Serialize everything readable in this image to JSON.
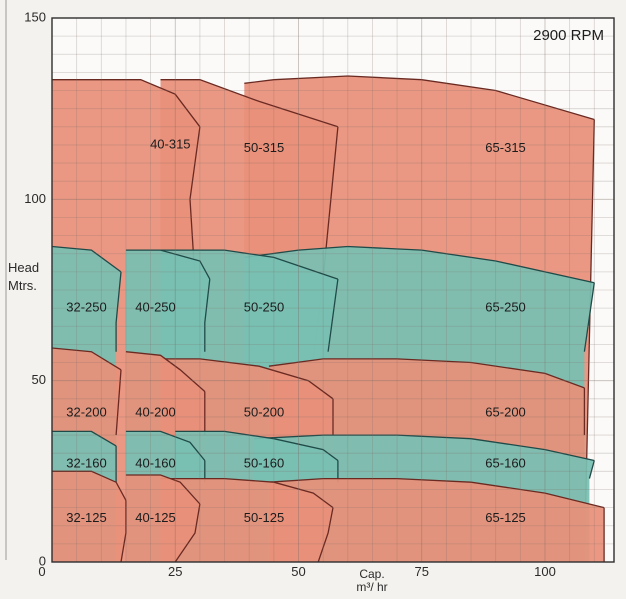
{
  "chart_data": {
    "type": "area",
    "title": "2900 RPM",
    "ylabel": "Head Mtrs.",
    "xlabel": "Cap. m³/ hr",
    "xlim": [
      0,
      114
    ],
    "ylim": [
      0,
      150
    ],
    "x_ticks": [
      0,
      25,
      50,
      75,
      100
    ],
    "x_tick_labels": [
      "0",
      "25",
      "50",
      "75",
      "100"
    ],
    "y_ticks": [
      0,
      50,
      100,
      150
    ],
    "y_tick_labels": [
      "0",
      "50",
      "100",
      "150"
    ],
    "grid": true,
    "colors": {
      "salmon": "#e8907a",
      "teal": "#79bfb3",
      "salmon_stroke": "#6a2a22",
      "teal_stroke": "#1f4a48"
    },
    "series": [
      {
        "name": "65-315",
        "label_at": [
          92,
          114
        ],
        "fill": "salmon",
        "left": [
          [
            39,
            0
          ],
          [
            39,
            132
          ]
        ],
        "top": [
          [
            39,
            132
          ],
          [
            45,
            133
          ],
          [
            60,
            134
          ],
          [
            75,
            133
          ],
          [
            90,
            130
          ],
          [
            110,
            122
          ]
        ],
        "right": [
          [
            110,
            122
          ],
          [
            108,
            0
          ]
        ]
      },
      {
        "name": "50-315",
        "label_at": [
          43,
          114
        ],
        "fill": "salmon",
        "left": [
          [
            22,
            0
          ],
          [
            22,
            133
          ]
        ],
        "top": [
          [
            22,
            133
          ],
          [
            30,
            133
          ],
          [
            42,
            127
          ],
          [
            58,
            120
          ]
        ],
        "right": [
          [
            58,
            120
          ],
          [
            55,
            78
          ],
          [
            48,
            0
          ]
        ]
      },
      {
        "name": "40-315",
        "label_at": [
          24,
          115
        ],
        "fill": "salmon",
        "left": [
          [
            0,
            0
          ],
          [
            0,
            133
          ]
        ],
        "top": [
          [
            0,
            133
          ],
          [
            8,
            133
          ],
          [
            18,
            133
          ],
          [
            25,
            129
          ],
          [
            30,
            120
          ]
        ],
        "right": [
          [
            30,
            120
          ],
          [
            28,
            100
          ],
          [
            29,
            78
          ]
        ]
      },
      {
        "name": "65-250",
        "label_at": [
          92,
          70
        ],
        "fill": "teal",
        "left": [
          [
            39,
            0
          ],
          [
            39,
            84
          ]
        ],
        "top": [
          [
            39,
            84
          ],
          [
            50,
            86
          ],
          [
            60,
            87
          ],
          [
            75,
            86
          ],
          [
            90,
            83
          ],
          [
            110,
            77
          ]
        ],
        "right": [
          [
            110,
            77
          ],
          [
            108,
            58
          ]
        ]
      },
      {
        "name": "50-250",
        "label_at": [
          43,
          70
        ],
        "fill": "teal",
        "left": [
          [
            22,
            0
          ],
          [
            22,
            86
          ]
        ],
        "top": [
          [
            22,
            86
          ],
          [
            35,
            86
          ],
          [
            45,
            84
          ],
          [
            58,
            78
          ]
        ],
        "right": [
          [
            58,
            78
          ],
          [
            56,
            58
          ]
        ]
      },
      {
        "name": "40-250",
        "label_at": [
          21,
          70
        ],
        "fill": "teal",
        "left": [
          [
            15,
            0
          ],
          [
            15,
            86
          ]
        ],
        "top": [
          [
            15,
            86
          ],
          [
            22,
            86
          ],
          [
            30,
            83
          ],
          [
            32,
            78
          ]
        ],
        "right": [
          [
            32,
            78
          ],
          [
            31,
            66
          ],
          [
            31,
            58
          ]
        ]
      },
      {
        "name": "32-250",
        "label_at": [
          7,
          70
        ],
        "fill": "teal",
        "left": [
          [
            0,
            0
          ],
          [
            0,
            87
          ]
        ],
        "top": [
          [
            0,
            87
          ],
          [
            8,
            86
          ],
          [
            14,
            80
          ]
        ],
        "right": [
          [
            14,
            80
          ],
          [
            13,
            66
          ],
          [
            13,
            58
          ]
        ]
      },
      {
        "name": "65-200",
        "label_at": [
          92,
          41
        ],
        "fill": "salmon",
        "left": [
          [
            44,
            0
          ],
          [
            44,
            54
          ]
        ],
        "top": [
          [
            44,
            54
          ],
          [
            55,
            56
          ],
          [
            70,
            56
          ],
          [
            85,
            55
          ],
          [
            100,
            52
          ],
          [
            108,
            48
          ]
        ],
        "right": [
          [
            108,
            48
          ],
          [
            108,
            35
          ]
        ]
      },
      {
        "name": "50-200",
        "label_at": [
          43,
          41
        ],
        "fill": "salmon",
        "left": [
          [
            22,
            0
          ],
          [
            22,
            56
          ]
        ],
        "top": [
          [
            22,
            56
          ],
          [
            30,
            56
          ],
          [
            42,
            54
          ],
          [
            52,
            50
          ],
          [
            57,
            45
          ]
        ],
        "right": [
          [
            57,
            45
          ],
          [
            57,
            35
          ]
        ]
      },
      {
        "name": "40-200",
        "label_at": [
          21,
          41
        ],
        "fill": "salmon",
        "left": [
          [
            15,
            0
          ],
          [
            15,
            58
          ]
        ],
        "top": [
          [
            15,
            58
          ],
          [
            22,
            57
          ],
          [
            26,
            53
          ],
          [
            31,
            47
          ]
        ],
        "right": [
          [
            31,
            47
          ],
          [
            31,
            35
          ]
        ]
      },
      {
        "name": "32-200",
        "label_at": [
          7,
          41
        ],
        "fill": "salmon",
        "left": [
          [
            0,
            0
          ],
          [
            0,
            59
          ]
        ],
        "top": [
          [
            0,
            59
          ],
          [
            8,
            58
          ],
          [
            14,
            53
          ]
        ],
        "right": [
          [
            14,
            53
          ],
          [
            13,
            35
          ]
        ]
      },
      {
        "name": "65-160",
        "label_at": [
          92,
          27
        ],
        "fill": "teal",
        "left": [
          [
            41,
            0
          ],
          [
            41,
            34
          ]
        ],
        "top": [
          [
            41,
            34
          ],
          [
            55,
            35
          ],
          [
            70,
            35
          ],
          [
            85,
            34
          ],
          [
            100,
            31
          ],
          [
            110,
            28
          ]
        ],
        "right": [
          [
            110,
            28
          ],
          [
            109,
            23
          ]
        ]
      },
      {
        "name": "50-160",
        "label_at": [
          43,
          27
        ],
        "fill": "teal",
        "left": [
          [
            25,
            0
          ],
          [
            25,
            36
          ]
        ],
        "top": [
          [
            25,
            36
          ],
          [
            35,
            36
          ],
          [
            45,
            34
          ],
          [
            55,
            31
          ],
          [
            58,
            28
          ]
        ],
        "right": [
          [
            58,
            28
          ],
          [
            58,
            22
          ]
        ]
      },
      {
        "name": "40-160",
        "label_at": [
          21,
          27
        ],
        "fill": "teal",
        "left": [
          [
            15,
            0
          ],
          [
            15,
            36
          ]
        ],
        "top": [
          [
            15,
            36
          ],
          [
            22,
            36
          ],
          [
            28,
            33
          ],
          [
            31,
            28
          ]
        ],
        "right": [
          [
            31,
            28
          ],
          [
            31,
            22
          ]
        ]
      },
      {
        "name": "32-160",
        "label_at": [
          7,
          27
        ],
        "fill": "teal",
        "left": [
          [
            0,
            0
          ],
          [
            0,
            36
          ]
        ],
        "top": [
          [
            0,
            36
          ],
          [
            8,
            36
          ],
          [
            13,
            32
          ]
        ],
        "right": [
          [
            13,
            32
          ],
          [
            13,
            22
          ]
        ]
      },
      {
        "name": "65-125",
        "label_at": [
          92,
          12
        ],
        "fill": "salmon",
        "left": [
          [
            44,
            0
          ],
          [
            44,
            22
          ]
        ],
        "top": [
          [
            44,
            22
          ],
          [
            55,
            23
          ],
          [
            70,
            23
          ],
          [
            85,
            22
          ],
          [
            100,
            19
          ],
          [
            112,
            15
          ]
        ],
        "right": [
          [
            112,
            15
          ],
          [
            112,
            0
          ]
        ]
      },
      {
        "name": "50-125",
        "label_at": [
          43,
          12
        ],
        "fill": "salmon",
        "left": [
          [
            22,
            0
          ],
          [
            22,
            23
          ]
        ],
        "top": [
          [
            22,
            23
          ],
          [
            35,
            23
          ],
          [
            45,
            22
          ],
          [
            53,
            19
          ],
          [
            57,
            15
          ]
        ],
        "right": [
          [
            57,
            15
          ],
          [
            56,
            8
          ],
          [
            54,
            0
          ]
        ]
      },
      {
        "name": "40-125",
        "label_at": [
          21,
          12
        ],
        "fill": "salmon",
        "left": [
          [
            15,
            0
          ],
          [
            15,
            24
          ]
        ],
        "top": [
          [
            15,
            24
          ],
          [
            22,
            24
          ],
          [
            26,
            22
          ],
          [
            30,
            16
          ]
        ],
        "right": [
          [
            30,
            16
          ],
          [
            29,
            8
          ],
          [
            25,
            0
          ]
        ]
      },
      {
        "name": "32-125",
        "label_at": [
          7,
          12
        ],
        "fill": "salmon",
        "left": [
          [
            0,
            0
          ],
          [
            0,
            25
          ]
        ],
        "top": [
          [
            0,
            25
          ],
          [
            8,
            25
          ],
          [
            13,
            22
          ],
          [
            15,
            17
          ]
        ],
        "right": [
          [
            15,
            17
          ],
          [
            15,
            8
          ],
          [
            14,
            0
          ]
        ]
      }
    ]
  }
}
